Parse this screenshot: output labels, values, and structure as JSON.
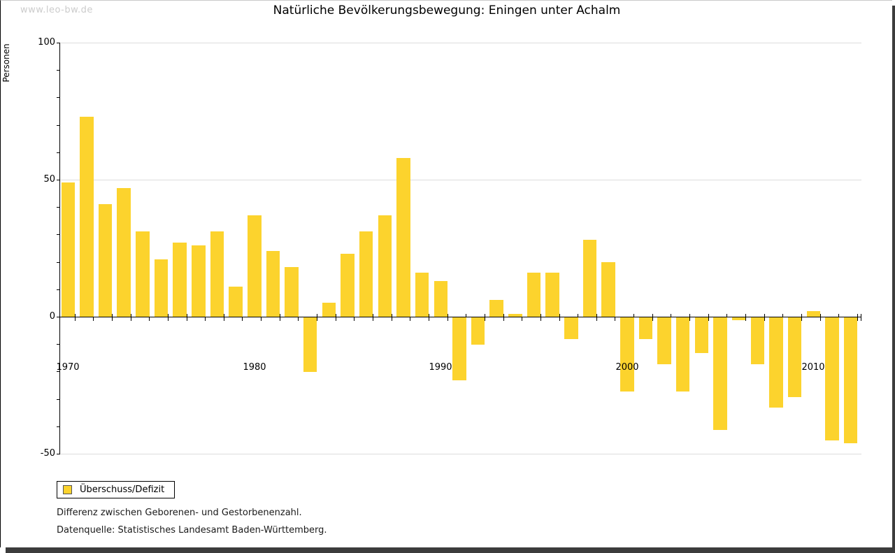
{
  "watermark": "www.leo-bw.de",
  "title": "Natürliche Bevölkerungsbewegung: Eningen unter Achalm",
  "y_axis": {
    "label": "Personen",
    "ticks": [
      "100",
      "50",
      "0",
      "-50"
    ]
  },
  "x_axis": {
    "labels": [
      "1970",
      "1980",
      "1990",
      "2000",
      "2010"
    ]
  },
  "legend": {
    "label": "Überschuss/Defizit",
    "swatch_color": "#fcd32d"
  },
  "notes": [
    "Differenz zwischen Geborenen- und Gestorbenenzahl.",
    "Datenquelle: Statistisches Landesamt Baden-Württemberg."
  ],
  "colors": {
    "bar": "#fcd32d",
    "grid": "#dddddd",
    "axis": "#000000",
    "watermark": "#cccccc",
    "shadow": "#3c3c3c"
  },
  "chart_data": {
    "type": "bar",
    "title": "Natürliche Bevölkerungsbewegung: Eningen unter Achalm",
    "xlabel": "",
    "ylabel": "Personen",
    "ylim": [
      -50,
      100
    ],
    "grid": "horizontal-at-labeled-ticks",
    "legend_position": "bottom-left",
    "series_name": "Überschuss/Defizit",
    "x": [
      1970,
      1971,
      1972,
      1973,
      1974,
      1975,
      1976,
      1977,
      1978,
      1979,
      1980,
      1981,
      1982,
      1983,
      1984,
      1985,
      1986,
      1987,
      1988,
      1989,
      1990,
      1991,
      1992,
      1993,
      1994,
      1995,
      1996,
      1997,
      1998,
      1999,
      2000,
      2001,
      2002,
      2003,
      2004,
      2005,
      2006,
      2007,
      2008,
      2009,
      2010,
      2011,
      2012
    ],
    "values": [
      49,
      73,
      41,
      47,
      31,
      21,
      27,
      26,
      31,
      11,
      37,
      24,
      18,
      -20,
      5,
      23,
      31,
      37,
      58,
      16,
      13,
      -23,
      -10,
      6,
      1,
      16,
      16,
      -8,
      28,
      20,
      -27,
      -8,
      -17,
      -27,
      -13,
      -41,
      -1,
      -17,
      -33,
      -29,
      2,
      -45,
      -46
    ]
  }
}
